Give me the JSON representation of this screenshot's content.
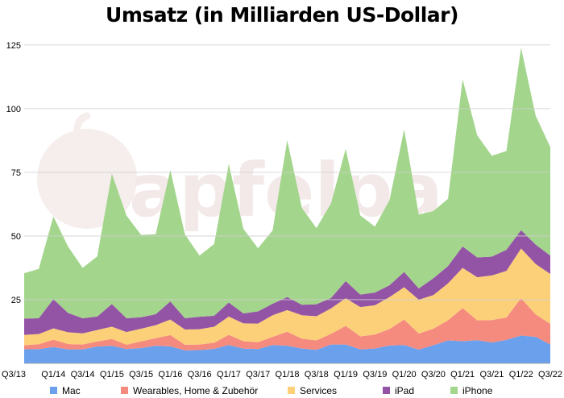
{
  "chart_data": {
    "type": "area",
    "stacked": true,
    "title": "Umsatz (in Milliarden US-Dollar)",
    "xlabel": "",
    "ylabel": "",
    "ylim": [
      0,
      130
    ],
    "yticks": [
      25,
      50,
      75,
      100,
      125
    ],
    "grid": true,
    "legend_position": "bottom",
    "categories": [
      "Q3/13",
      "Q4/13",
      "Q1/14",
      "Q2/14",
      "Q3/14",
      "Q4/14",
      "Q1/15",
      "Q2/15",
      "Q3/15",
      "Q4/15",
      "Q1/16",
      "Q2/16",
      "Q3/16",
      "Q4/16",
      "Q1/17",
      "Q2/17",
      "Q3/17",
      "Q4/17",
      "Q1/18",
      "Q2/18",
      "Q3/18",
      "Q4/18",
      "Q1/19",
      "Q2/19",
      "Q3/19",
      "Q4/19",
      "Q1/20",
      "Q2/20",
      "Q3/20",
      "Q4/20",
      "Q1/21",
      "Q2/21",
      "Q3/21",
      "Q4/21",
      "Q1/22",
      "Q2/22",
      "Q3/22"
    ],
    "tick_labels": [
      "Q3/13",
      "Q1/14",
      "Q3/14",
      "Q1/15",
      "Q3/15",
      "Q1/16",
      "Q3/16",
      "Q1/17",
      "Q3/17",
      "Q1/18",
      "Q3/18",
      "Q1/19",
      "Q3/19",
      "Q1/20",
      "Q3/20",
      "Q1/21",
      "Q3/21",
      "Q1/22",
      "Q3/22"
    ],
    "series": [
      {
        "name": "Mac",
        "color": "#6aa0ec",
        "values": [
          5.5,
          5.6,
          6.4,
          5.5,
          5.5,
          6.6,
          6.9,
          5.6,
          6.0,
          6.9,
          6.7,
          5.1,
          5.2,
          5.7,
          7.2,
          5.8,
          5.6,
          7.2,
          6.9,
          5.8,
          5.3,
          7.4,
          7.4,
          5.5,
          5.8,
          7.0,
          7.2,
          5.4,
          7.1,
          9.0,
          8.7,
          9.1,
          8.2,
          9.2,
          10.9,
          10.4,
          7.4
        ]
      },
      {
        "name": "Wearables, Home & Zubehör",
        "color": "#f58a7f",
        "values": [
          1.6,
          1.9,
          2.9,
          2.1,
          1.9,
          2.0,
          2.7,
          1.7,
          2.6,
          3.0,
          4.4,
          2.2,
          2.2,
          2.4,
          4.0,
          2.9,
          2.7,
          3.2,
          5.5,
          3.9,
          3.7,
          4.2,
          7.3,
          5.1,
          5.5,
          6.5,
          10.0,
          6.3,
          6.5,
          7.9,
          13.0,
          7.8,
          8.8,
          8.8,
          14.7,
          8.8,
          8.1
        ]
      },
      {
        "name": "Services",
        "color": "#fcd079",
        "values": [
          4.1,
          4.0,
          4.4,
          4.6,
          4.4,
          4.5,
          4.8,
          5.0,
          5.0,
          5.1,
          6.1,
          6.0,
          6.0,
          6.3,
          7.2,
          7.0,
          7.3,
          8.5,
          8.5,
          9.2,
          9.5,
          10.0,
          10.9,
          11.5,
          11.5,
          12.5,
          12.7,
          13.3,
          13.2,
          14.5,
          15.8,
          16.9,
          17.5,
          18.3,
          19.5,
          19.8,
          19.6
        ]
      },
      {
        "name": "iPad",
        "color": "#9454a5",
        "values": [
          6.4,
          6.2,
          11.5,
          7.6,
          5.9,
          5.3,
          8.9,
          5.4,
          4.5,
          4.3,
          7.1,
          4.4,
          4.9,
          4.3,
          5.5,
          3.9,
          4.8,
          4.5,
          5.1,
          4.1,
          4.7,
          4.1,
          6.7,
          4.9,
          5.0,
          4.7,
          6.0,
          4.4,
          6.6,
          6.8,
          8.4,
          7.8,
          7.4,
          8.3,
          7.2,
          7.6,
          7.2
        ]
      },
      {
        "name": "iPhone",
        "color": "#a3d58c",
        "values": [
          17.8,
          19.4,
          32.5,
          26.1,
          19.8,
          23.6,
          51.2,
          40.3,
          32.3,
          31.4,
          51.6,
          32.9,
          24.0,
          28.2,
          54.4,
          33.2,
          24.8,
          28.8,
          61.6,
          38.0,
          29.9,
          37.2,
          51.9,
          31.1,
          25.9,
          33.4,
          56.0,
          29.0,
          26.4,
          26.4,
          65.6,
          47.9,
          39.6,
          38.8,
          71.6,
          50.6,
          42.6
        ]
      }
    ]
  },
  "watermark": {
    "text": "apfelpa"
  }
}
